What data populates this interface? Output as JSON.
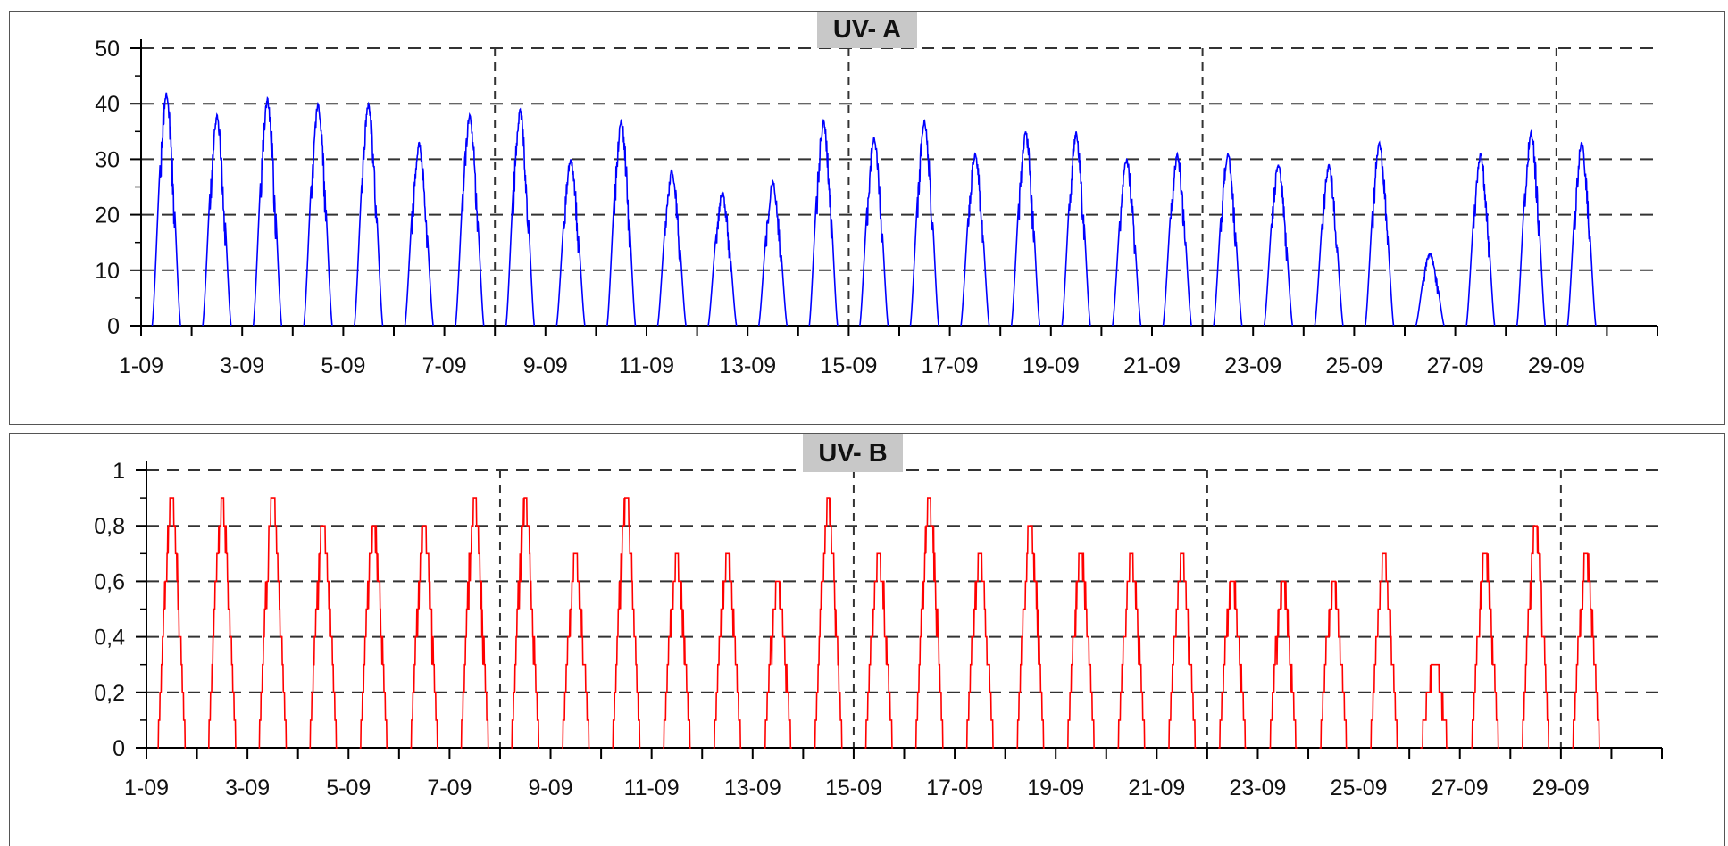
{
  "chart_data": [
    {
      "type": "line",
      "title": "UV- A",
      "xlabel": "",
      "ylabel": "",
      "x_range": [
        1,
        31
      ],
      "ylim": [
        0,
        50
      ],
      "yticks": [
        0,
        10,
        20,
        30,
        40,
        50
      ],
      "ytick_labels": [
        "0",
        "10",
        "20",
        "30",
        "40",
        "50"
      ],
      "xtick_labels": [
        "1-09",
        "3-09",
        "5-09",
        "7-09",
        "9-09",
        "11-09",
        "13-09",
        "15-09",
        "17-09",
        "19-09",
        "21-09",
        "23-09",
        "25-09",
        "27-09",
        "29-09"
      ],
      "grid": "dashed",
      "series": [
        {
          "color": "#0000ff",
          "daily_peaks": [
            42,
            38,
            41,
            40,
            40,
            33,
            38,
            39,
            30,
            37,
            28,
            24,
            26,
            37,
            34,
            37,
            31,
            35,
            35,
            30,
            31,
            31,
            29,
            29,
            33,
            13,
            31,
            35,
            33
          ]
        }
      ]
    },
    {
      "type": "line",
      "title": "UV- B",
      "xlabel": "",
      "ylabel": "",
      "x_range": [
        1,
        31
      ],
      "ylim": [
        0,
        1
      ],
      "yticks": [
        0,
        0.2,
        0.4,
        0.6,
        0.8,
        1
      ],
      "ytick_labels": [
        "0",
        "0,2",
        "0,4",
        "0,6",
        "0,8",
        "1"
      ],
      "xtick_labels": [
        "1-09",
        "3-09",
        "5-09",
        "7-09",
        "9-09",
        "11-09",
        "13-09",
        "15-09",
        "17-09",
        "19-09",
        "21-09",
        "23-09",
        "25-09",
        "27-09",
        "29-09"
      ],
      "grid": "dashed",
      "series": [
        {
          "color": "#ff0000",
          "daily_peaks": [
            0.9,
            0.9,
            0.9,
            0.8,
            0.8,
            0.8,
            0.9,
            0.9,
            0.7,
            0.9,
            0.7,
            0.7,
            0.6,
            0.9,
            0.7,
            0.9,
            0.7,
            0.8,
            0.7,
            0.7,
            0.7,
            0.6,
            0.6,
            0.6,
            0.7,
            0.3,
            0.7,
            0.8,
            0.7
          ]
        }
      ]
    }
  ]
}
